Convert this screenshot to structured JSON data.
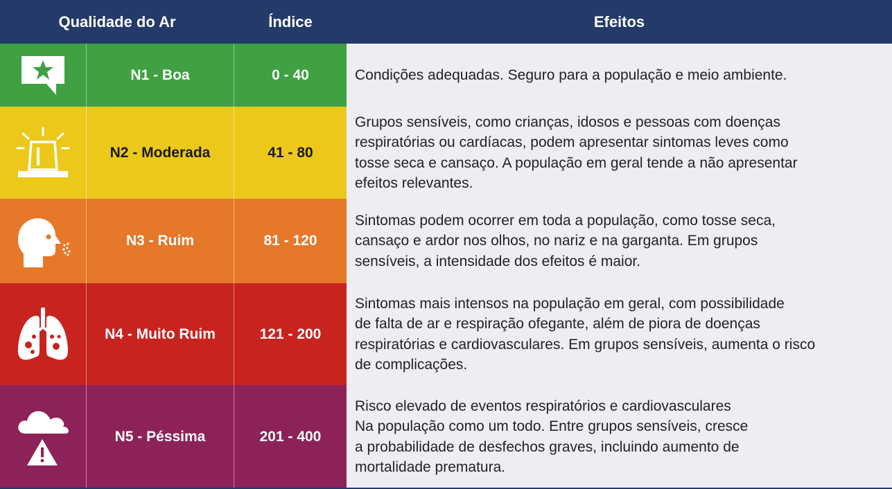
{
  "header": {
    "quality": "Qualidade do Ar",
    "index": "Índice",
    "effects": "Efeitos"
  },
  "colors": {
    "header_bg": "#243a68",
    "effects_bg": "#eeedf3",
    "n1": "#3fa142",
    "n2": "#ecc81a",
    "n3": "#e57829",
    "n4": "#c7231f",
    "n5": "#8d2259"
  },
  "rows": [
    {
      "level": "N1 - Boa",
      "range": "0 - 40",
      "icon": "star-speech-bubble-icon",
      "effects": "Condições adequadas. Seguro para a população e meio ambiente."
    },
    {
      "level": "N2 - Moderada",
      "range": "41 - 80",
      "icon": "alert-siren-icon",
      "effects": "Grupos sensíveis, como crianças, idosos e pessoas com doenças\nrespiratórias ou cardíacas, podem apresentar sintomas leves como\ntosse seca e cansaço. A população em geral tende a não apresentar\nefeitos relevantes."
    },
    {
      "level": "N3 - Ruim",
      "range": "81 - 120",
      "icon": "person-coughing-icon",
      "effects": "Sintomas podem ocorrer em toda a população, como tosse seca,\ncansaço e ardor nos olhos, no nariz e na garganta. Em grupos\nsensíveis, a intensidade dos efeitos é maior."
    },
    {
      "level": "N4 - Muito Ruim",
      "range": "121 - 200",
      "icon": "infected-lungs-icon",
      "effects": "Sintomas mais intensos na população em geral, com possibilidade\nde falta de ar e respiração ofegante, além de piora de doenças\nrespiratórias e cardiovasculares. Em grupos sensíveis, aumenta o risco\nde complicações."
    },
    {
      "level": "N5 - Péssima",
      "range": "201 - 400",
      "icon": "cloud-warning-icon",
      "effects": "Risco elevado de eventos respiratórios e cardiovasculares\nNa população como um todo. Entre grupos sensíveis, cresce\na probabilidade de desfechos graves, incluindo aumento de\nmortalidade prematura."
    }
  ]
}
